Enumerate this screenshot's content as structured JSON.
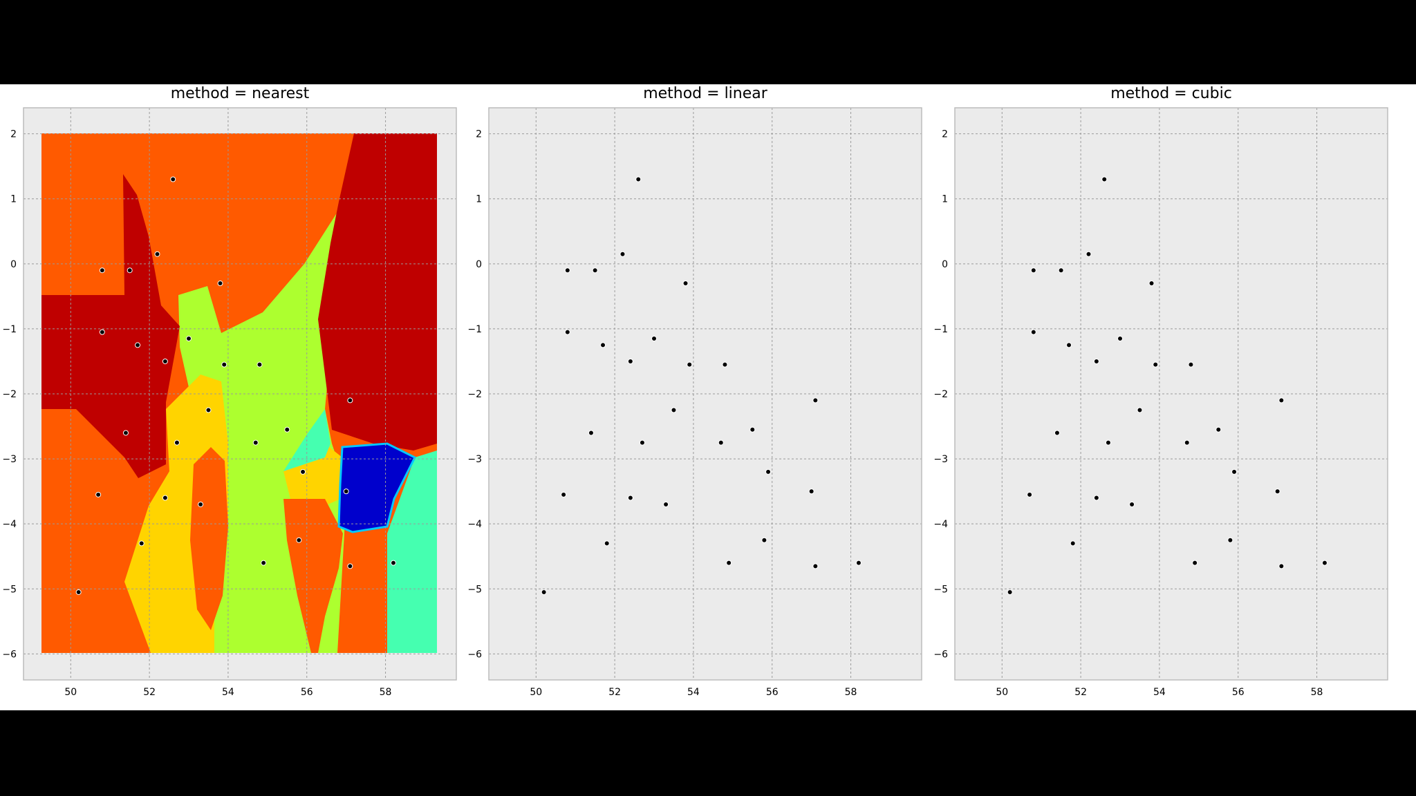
{
  "colors": {
    "panel_bg": "#ebebeb",
    "frame": "#bcbcbc",
    "grid": "#9a9a9a",
    "point": "#000000",
    "jet": [
      "#bf0000",
      "#ff5a00",
      "#ffd400",
      "#adff2f",
      "#45ffb0",
      "#00c8ff",
      "#0063ff",
      "#0000cc"
    ]
  },
  "chart_data": [
    {
      "type": "heatmap",
      "title": "method = nearest",
      "xlim": [
        48.8,
        59.8
      ],
      "ylim": [
        -6.4,
        2.4
      ],
      "xticks": [
        50,
        52,
        54,
        56,
        58
      ],
      "yticks": [
        2,
        1,
        0,
        -1,
        -2,
        -3,
        -4,
        -5,
        -6
      ],
      "ytick_labels": [
        "2",
        "1",
        "0",
        "−1",
        "−2",
        "−3",
        "−4",
        "−5",
        "−6"
      ],
      "grid": true,
      "scatter_points": [
        [
          52.6,
          1.3
        ],
        [
          52.2,
          0.15
        ],
        [
          50.8,
          -0.1
        ],
        [
          51.5,
          -0.1
        ],
        [
          53.8,
          -0.3
        ],
        [
          50.8,
          -1.05
        ],
        [
          51.7,
          -1.25
        ],
        [
          53.0,
          -1.15
        ],
        [
          52.4,
          -1.5
        ],
        [
          53.9,
          -1.55
        ],
        [
          54.8,
          -1.55
        ],
        [
          57.1,
          -2.1
        ],
        [
          53.5,
          -2.25
        ],
        [
          51.4,
          -2.6
        ],
        [
          52.7,
          -2.75
        ],
        [
          54.7,
          -2.75
        ],
        [
          55.5,
          -2.55
        ],
        [
          55.9,
          -3.2
        ],
        [
          50.7,
          -3.55
        ],
        [
          52.4,
          -3.6
        ],
        [
          53.3,
          -3.7
        ],
        [
          57.0,
          -3.5
        ],
        [
          51.8,
          -4.3
        ],
        [
          55.8,
          -4.25
        ],
        [
          54.9,
          -4.6
        ],
        [
          58.2,
          -4.6
        ],
        [
          57.1,
          -4.65
        ],
        [
          50.2,
          -5.05
        ]
      ]
    },
    {
      "type": "heatmap",
      "title": "method = linear",
      "xlim": [
        48.8,
        59.8
      ],
      "ylim": [
        -6.4,
        2.4
      ],
      "xticks": [
        50,
        52,
        54,
        56,
        58
      ],
      "yticks": [
        2,
        1,
        0,
        -1,
        -2,
        -3,
        -4,
        -5,
        -6
      ],
      "ytick_labels": [
        "2",
        "1",
        "0",
        "−1",
        "−2",
        "−3",
        "−4",
        "−5",
        "−6"
      ],
      "grid": true,
      "scatter_points": [
        [
          52.6,
          1.3
        ],
        [
          52.2,
          0.15
        ],
        [
          50.8,
          -0.1
        ],
        [
          51.5,
          -0.1
        ],
        [
          53.8,
          -0.3
        ],
        [
          50.8,
          -1.05
        ],
        [
          51.7,
          -1.25
        ],
        [
          53.0,
          -1.15
        ],
        [
          52.4,
          -1.5
        ],
        [
          53.9,
          -1.55
        ],
        [
          54.8,
          -1.55
        ],
        [
          57.1,
          -2.1
        ],
        [
          53.5,
          -2.25
        ],
        [
          51.4,
          -2.6
        ],
        [
          52.7,
          -2.75
        ],
        [
          54.7,
          -2.75
        ],
        [
          55.5,
          -2.55
        ],
        [
          55.9,
          -3.2
        ],
        [
          50.7,
          -3.55
        ],
        [
          52.4,
          -3.6
        ],
        [
          53.3,
          -3.7
        ],
        [
          57.0,
          -3.5
        ],
        [
          51.8,
          -4.3
        ],
        [
          55.8,
          -4.25
        ],
        [
          54.9,
          -4.6
        ],
        [
          58.2,
          -4.6
        ],
        [
          57.1,
          -4.65
        ],
        [
          50.2,
          -5.05
        ]
      ]
    },
    {
      "type": "heatmap",
      "title": "method = cubic",
      "xlim": [
        48.8,
        59.8
      ],
      "ylim": [
        -6.4,
        2.4
      ],
      "xticks": [
        50,
        52,
        54,
        56,
        58
      ],
      "yticks": [
        2,
        1,
        0,
        -1,
        -2,
        -3,
        -4,
        -5,
        -6
      ],
      "ytick_labels": [
        "2",
        "1",
        "0",
        "−1",
        "−2",
        "−3",
        "−4",
        "−5",
        "−6"
      ],
      "grid": true,
      "scatter_points": [
        [
          52.6,
          1.3
        ],
        [
          52.2,
          0.15
        ],
        [
          50.8,
          -0.1
        ],
        [
          51.5,
          -0.1
        ],
        [
          53.8,
          -0.3
        ],
        [
          50.8,
          -1.05
        ],
        [
          51.7,
          -1.25
        ],
        [
          53.0,
          -1.15
        ],
        [
          52.4,
          -1.5
        ],
        [
          53.9,
          -1.55
        ],
        [
          54.8,
          -1.55
        ],
        [
          57.1,
          -2.1
        ],
        [
          53.5,
          -2.25
        ],
        [
          51.4,
          -2.6
        ],
        [
          52.7,
          -2.75
        ],
        [
          54.7,
          -2.75
        ],
        [
          55.5,
          -2.55
        ],
        [
          55.9,
          -3.2
        ],
        [
          50.7,
          -3.55
        ],
        [
          52.4,
          -3.6
        ],
        [
          53.3,
          -3.7
        ],
        [
          57.0,
          -3.5
        ],
        [
          51.8,
          -4.3
        ],
        [
          55.8,
          -4.25
        ],
        [
          54.9,
          -4.6
        ],
        [
          58.2,
          -4.6
        ],
        [
          57.1,
          -4.65
        ],
        [
          50.2,
          -5.05
        ]
      ]
    }
  ]
}
